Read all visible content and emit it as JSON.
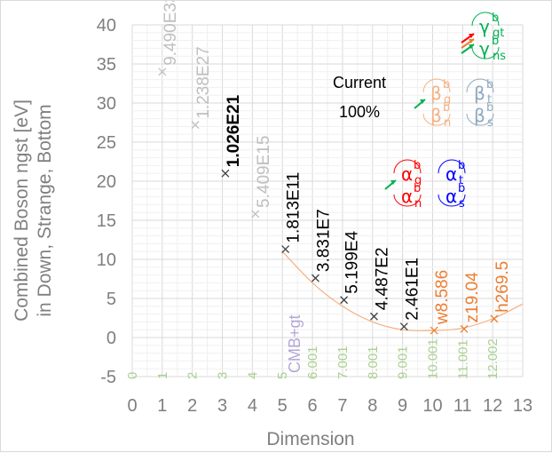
{
  "chart_data": {
    "type": "scatter",
    "xlabel": "Dimension",
    "ylabel_line1": "Combined Boson ngst [eV]",
    "ylabel_line2": "in Down, Strange, Bottom",
    "xlim": [
      0,
      13
    ],
    "ylim": [
      -5,
      40
    ],
    "x_ticks": [
      "0",
      "1",
      "2",
      "3",
      "4",
      "5",
      "6",
      "7",
      "8",
      "9",
      "10",
      "11",
      "12",
      "13"
    ],
    "y_ticks": [
      "-5",
      "0",
      "5",
      "10",
      "15",
      "20",
      "25",
      "30",
      "35",
      "40"
    ],
    "grid": true,
    "annotation": {
      "line1": "Current",
      "line2": "100%"
    },
    "points": [
      {
        "x": 1.0,
        "y": 34.0,
        "label": "9.490E33",
        "color": "#bfbfbf",
        "bold": false
      },
      {
        "x": 2.1,
        "y": 27.2,
        "label": "1.238E27",
        "color": "#bfbfbf",
        "bold": false
      },
      {
        "x": 3.1,
        "y": 21.0,
        "label": "1.026E21",
        "color": "#000000",
        "bold": true
      },
      {
        "x": 4.1,
        "y": 15.8,
        "label": "5.409E15",
        "color": "#bfbfbf",
        "bold": false
      },
      {
        "x": 5.1,
        "y": 11.3,
        "label": "1.813E11",
        "color": "#000000",
        "bold": false
      },
      {
        "x": 6.1,
        "y": 7.6,
        "label": "3.831E7",
        "color": "#000000",
        "bold": false
      },
      {
        "x": 7.05,
        "y": 4.8,
        "label": "5.199E4",
        "color": "#000000",
        "bold": false
      },
      {
        "x": 8.05,
        "y": 2.7,
        "label": "4.487E2",
        "color": "#000000",
        "bold": false
      },
      {
        "x": 9.05,
        "y": 1.4,
        "label": "2.461E1",
        "color": "#000000",
        "bold": false
      },
      {
        "x": 10.05,
        "y": 0.9,
        "label": "w8.586",
        "color": "#ed7d31",
        "bold": false
      },
      {
        "x": 11.05,
        "y": 1.1,
        "label": "z19.04",
        "color": "#ed7d31",
        "bold": false
      },
      {
        "x": 12.05,
        "y": 2.4,
        "label": "h269.5",
        "color": "#ed7d31",
        "bold": false
      }
    ],
    "trend_curve": {
      "color": "#f4b183",
      "x": [
        5,
        6,
        7,
        8,
        9,
        10,
        11,
        12,
        13
      ],
      "y": [
        11.0,
        7.0,
        4.0,
        2.0,
        1.0,
        0.9,
        1.2,
        2.4,
        4.3
      ]
    },
    "bottom_labels": [
      {
        "x": 0,
        "text": "0",
        "color": "#a9d18e"
      },
      {
        "x": 1,
        "text": "1",
        "color": "#a9d18e"
      },
      {
        "x": 2,
        "text": "2",
        "color": "#a9d18e"
      },
      {
        "x": 3,
        "text": "3",
        "color": "#a9d18e"
      },
      {
        "x": 4,
        "text": "4",
        "color": "#a9d18e"
      },
      {
        "x": 5,
        "text": "5",
        "color": "#a9d18e"
      },
      {
        "x": 6,
        "text": "6.001",
        "color": "#a9d18e"
      },
      {
        "x": 7,
        "text": "7.001",
        "color": "#a9d18e"
      },
      {
        "x": 8,
        "text": "8.001",
        "color": "#a9d18e"
      },
      {
        "x": 9,
        "text": "9.001",
        "color": "#a9d18e"
      },
      {
        "x": 10,
        "text": "10.001",
        "color": "#a9d18e"
      },
      {
        "x": 11,
        "text": "11.001",
        "color": "#a9d18e"
      },
      {
        "x": 12,
        "text": "12.002",
        "color": "#a9d18e"
      }
    ],
    "cmb_label": {
      "text": "CMB+gt",
      "color": "#b4a7d6"
    },
    "symbol_groups": [
      {
        "color": "#ff0000",
        "sup": "b",
        "top": "α",
        "top_sub": "g",
        "bot": "α",
        "bot_sub": "n"
      },
      {
        "color": "#0000ff",
        "sup": "b",
        "top": "α",
        "top_sub": "t",
        "bot": "α",
        "bot_sub": "s"
      },
      {
        "color": "#f4b183",
        "sup": "b",
        "top": "β",
        "top_sub": "g",
        "bot": "β",
        "bot_sub": "n"
      },
      {
        "color": "#8ea9c1",
        "sup": "b",
        "top": "β",
        "top_sub": "t",
        "bot": "β",
        "bot_sub": "s"
      },
      {
        "color": "#00b050",
        "sup": "b",
        "top": "γ",
        "top_sub": "gt",
        "bot": "γ",
        "bot_sub": "ns"
      }
    ]
  }
}
